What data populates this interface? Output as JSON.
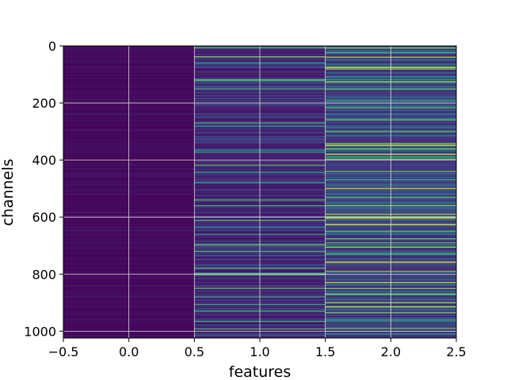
{
  "chart_data": {
    "type": "heatmap",
    "title": "",
    "xlabel": "features",
    "ylabel": "channels",
    "xlim": [
      -0.5,
      2.5
    ],
    "ylim": [
      1024,
      0
    ],
    "y_inverted": true,
    "grid": true,
    "colormap": "viridis",
    "n_rows": 1024,
    "columns": [
      0,
      1,
      2
    ],
    "xticks": [
      -0.5,
      0.0,
      0.5,
      1.0,
      1.5,
      2.0,
      2.5
    ],
    "xtick_labels": [
      "−0.5",
      "0.0",
      "0.5",
      "1.0",
      "1.5",
      "2.0",
      "2.5"
    ],
    "yticks": [
      0,
      200,
      400,
      600,
      800,
      1000
    ],
    "ytick_labels": [
      "0",
      "200",
      "400",
      "600",
      "800",
      "1000"
    ],
    "column_level": [
      0.05,
      0.18,
      0.35
    ],
    "column_spread": [
      0.08,
      0.35,
      0.6
    ],
    "bright_rows": {
      "0": [],
      "1": [
        5,
        38,
        60,
        118,
        122,
        150,
        270,
        282,
        365,
        372,
        418,
        444,
        480,
        540,
        560,
        612,
        636,
        660,
        695,
        720,
        780,
        798,
        802,
        850,
        880,
        905,
        930,
        965,
        992
      ],
      "2": [
        8,
        22,
        40,
        75,
        80,
        118,
        125,
        150,
        190,
        215,
        260,
        300,
        342,
        348,
        360,
        380,
        398,
        440,
        470,
        500,
        530,
        560,
        590,
        597,
        600,
        604,
        625,
        650,
        676,
        690,
        705,
        730,
        758,
        790,
        830,
        850,
        870,
        900,
        915,
        935,
        960,
        990,
        1010
      ]
    }
  }
}
